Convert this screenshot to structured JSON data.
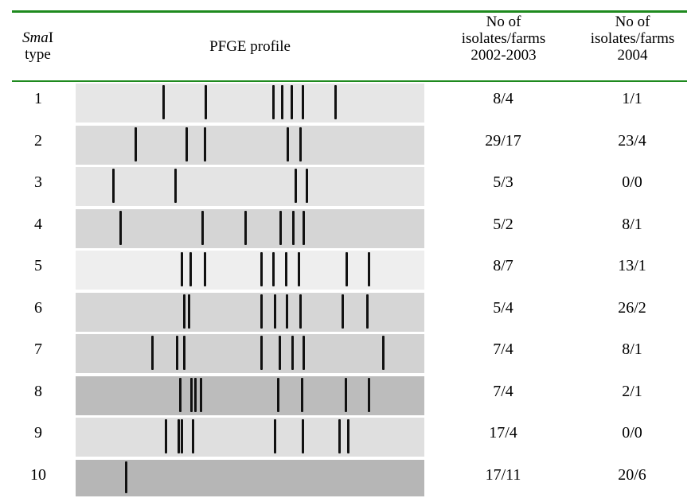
{
  "header": {
    "type_italic": "Sma",
    "type_rest": "I",
    "type_line2": "type",
    "profile": "PFGE profile",
    "period1": [
      "No of",
      "isolates/farms",
      "2002-2003"
    ],
    "period2": [
      "No of",
      "isolates/farms",
      "2004"
    ]
  },
  "rows": [
    [
      "1",
      "8/4",
      "1/1"
    ],
    [
      "2",
      "29/17",
      "23/4"
    ],
    [
      "3",
      "5/3",
      "0/0"
    ],
    [
      "4",
      "5/2",
      "8/1"
    ],
    [
      "5",
      "8/7",
      "13/1"
    ],
    [
      "6",
      "5/4",
      "26/2"
    ],
    [
      "7",
      "7/4",
      "8/1"
    ],
    [
      "8",
      "7/4",
      "2/1"
    ],
    [
      "9",
      "17/4",
      "0/0"
    ],
    [
      "10",
      "17/11",
      "20/6"
    ]
  ]
}
